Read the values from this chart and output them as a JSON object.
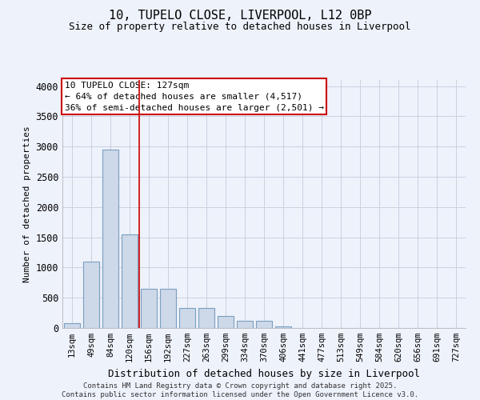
{
  "title_line1": "10, TUPELO CLOSE, LIVERPOOL, L12 0BP",
  "title_line2": "Size of property relative to detached houses in Liverpool",
  "xlabel": "Distribution of detached houses by size in Liverpool",
  "ylabel": "Number of detached properties",
  "bar_color": "#cdd9e8",
  "bar_edge_color": "#7a9ec0",
  "background_color": "#eef2fb",
  "grid_color": "#c8d0e0",
  "categories": [
    "13sqm",
    "49sqm",
    "84sqm",
    "120sqm",
    "156sqm",
    "192sqm",
    "227sqm",
    "263sqm",
    "299sqm",
    "334sqm",
    "370sqm",
    "406sqm",
    "441sqm",
    "477sqm",
    "513sqm",
    "549sqm",
    "584sqm",
    "620sqm",
    "656sqm",
    "691sqm",
    "727sqm"
  ],
  "values": [
    75,
    1100,
    2950,
    1550,
    650,
    650,
    330,
    330,
    200,
    120,
    120,
    25,
    0,
    0,
    0,
    0,
    0,
    0,
    0,
    0,
    0
  ],
  "ylim": [
    0,
    4100
  ],
  "yticks": [
    0,
    500,
    1000,
    1500,
    2000,
    2500,
    3000,
    3500,
    4000
  ],
  "property_bin_index": 3,
  "red_line_x": 3.5,
  "annotation_title": "10 TUPELO CLOSE: 127sqm",
  "annotation_line2": "← 64% of detached houses are smaller (4,517)",
  "annotation_line3": "36% of semi-detached houses are larger (2,501) →",
  "annotation_box_color": "#ffffff",
  "annotation_border_color": "#cc0000",
  "red_line_color": "#cc0000",
  "footer_line1": "Contains HM Land Registry data © Crown copyright and database right 2025.",
  "footer_line2": "Contains public sector information licensed under the Open Government Licence v3.0."
}
